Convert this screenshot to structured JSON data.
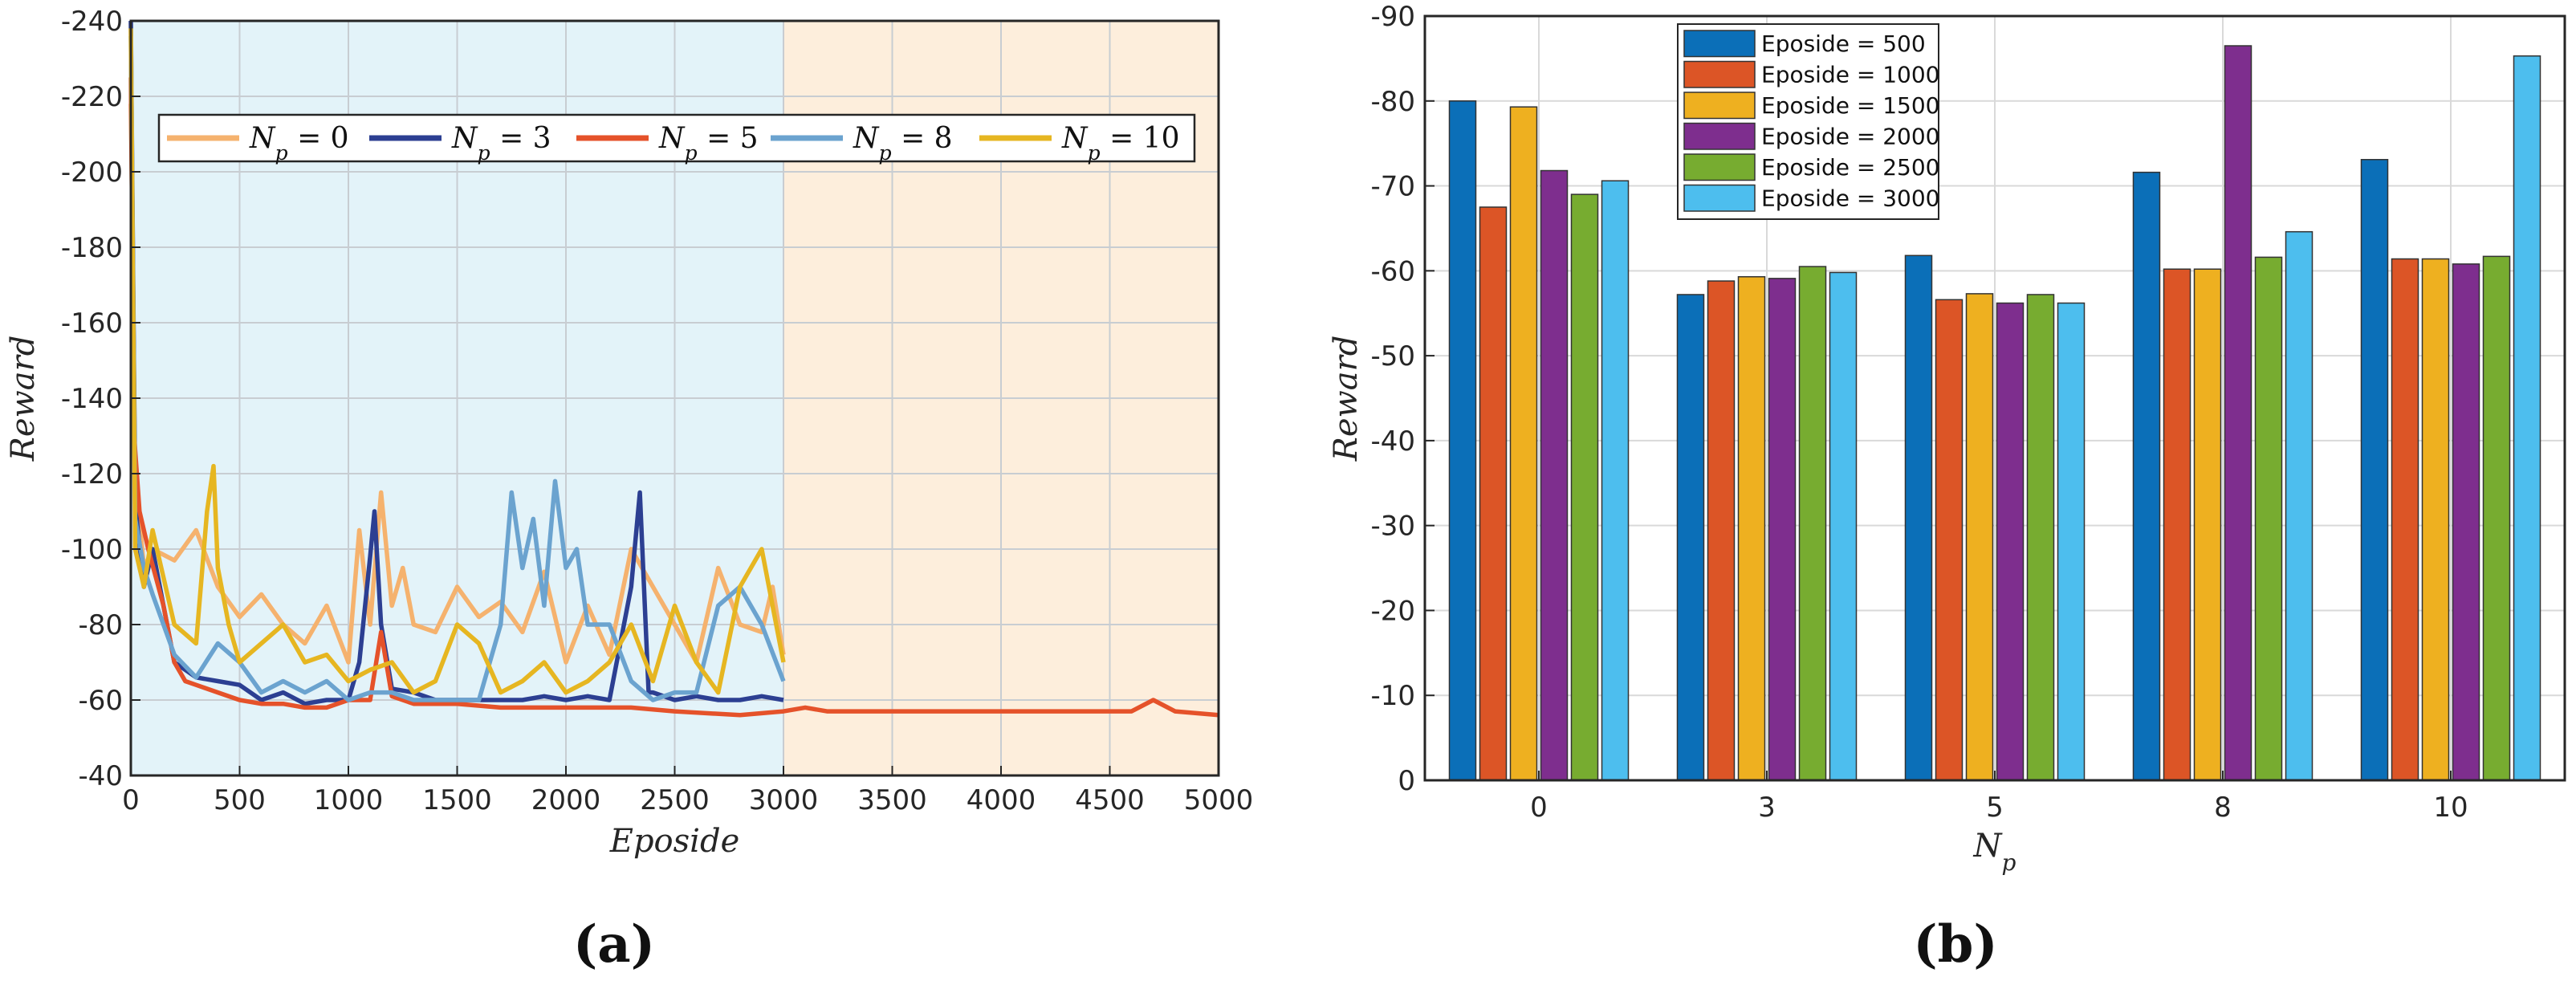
{
  "chart_data": [
    {
      "type": "line",
      "caption": "(a)",
      "xlabel": "Eposide",
      "ylabel": "Reward",
      "xlim": [
        0,
        5000
      ],
      "ylim": [
        -40,
        -240
      ],
      "y_axis_reversed": true,
      "grid": true,
      "legend_position": "top",
      "legend_layout": "horizontal",
      "x_ticks": [
        "0",
        "500",
        "1000",
        "1500",
        "2000",
        "2500",
        "3000",
        "3500",
        "4000",
        "4500",
        "5000"
      ],
      "y_ticks": [
        "-40",
        "-60",
        "-80",
        "-100",
        "-120",
        "-140",
        "-160",
        "-180",
        "-200",
        "-220",
        "-240"
      ],
      "shaded_regions": [
        {
          "x": [
            0,
            3000
          ],
          "color": "#e3f3f9"
        },
        {
          "x": [
            3000,
            5000
          ],
          "color": "#fdeedc"
        }
      ],
      "series": [
        {
          "name": "N_p = 0",
          "label_base": "N",
          "label_sub": "p",
          "label_val": " = 0",
          "color": "#f5b26e",
          "x": [
            0,
            20,
            60,
            100,
            200,
            300,
            400,
            500,
            600,
            700,
            800,
            900,
            1000,
            1050,
            1100,
            1150,
            1200,
            1250,
            1300,
            1400,
            1500,
            1600,
            1700,
            1800,
            1900,
            2000,
            2100,
            2200,
            2300,
            2400,
            2500,
            2600,
            2700,
            2800,
            2900,
            2950,
            3000
          ],
          "y": [
            -218,
            -120,
            -95,
            -100,
            -97,
            -105,
            -90,
            -82,
            -88,
            -80,
            -75,
            -85,
            -70,
            -105,
            -80,
            -115,
            -85,
            -95,
            -80,
            -78,
            -90,
            -82,
            -86,
            -78,
            -94,
            -70,
            -85,
            -72,
            -100,
            -90,
            -80,
            -70,
            -95,
            -80,
            -78,
            -90,
            -72
          ]
        },
        {
          "name": "N_p = 3",
          "label_base": "N",
          "label_sub": "p",
          "label_val": " = 3",
          "color": "#2c3f92",
          "x": [
            0,
            20,
            60,
            100,
            200,
            300,
            400,
            500,
            600,
            700,
            800,
            900,
            1000,
            1050,
            1100,
            1120,
            1150,
            1200,
            1300,
            1400,
            1500,
            1600,
            1700,
            1800,
            1900,
            2000,
            2100,
            2200,
            2300,
            2340,
            2380,
            2400,
            2500,
            2600,
            2700,
            2800,
            2900,
            3000
          ],
          "y": [
            -240,
            -112,
            -90,
            -100,
            -70,
            -66,
            -65,
            -64,
            -60,
            -62,
            -59,
            -60,
            -60,
            -70,
            -98,
            -110,
            -80,
            -63,
            -62,
            -60,
            -60,
            -60,
            -60,
            -60,
            -61,
            -60,
            -61,
            -60,
            -90,
            -115,
            -62,
            -62,
            -60,
            -61,
            -60,
            -60,
            -61,
            -60
          ]
        },
        {
          "name": "N_p = 5",
          "label_base": "N",
          "label_sub": "p",
          "label_val": " = 5",
          "color": "#e5522a",
          "x": [
            0,
            15,
            40,
            80,
            150,
            200,
            250,
            300,
            400,
            500,
            600,
            700,
            800,
            900,
            1000,
            1100,
            1150,
            1200,
            1300,
            1500,
            1700,
            2000,
            2300,
            2500,
            2800,
            3000,
            3100,
            3200,
            3400,
            3600,
            3800,
            4000,
            4200,
            4400,
            4600,
            4700,
            4800,
            5000
          ],
          "y": [
            -225,
            -130,
            -110,
            -100,
            -85,
            -70,
            -65,
            -64,
            -62,
            -60,
            -59,
            -59,
            -58,
            -58,
            -60,
            -60,
            -78,
            -61,
            -59,
            -59,
            -58,
            -58,
            -58,
            -57,
            -56,
            -57,
            -58,
            -57,
            -57,
            -57,
            -57,
            -57,
            -57,
            -57,
            -57,
            -60,
            -57,
            -56
          ]
        },
        {
          "name": "N_p = 8",
          "label_base": "N",
          "label_sub": "p",
          "label_val": " = 8",
          "color": "#6ba3cf",
          "x": [
            0,
            20,
            60,
            100,
            200,
            300,
            400,
            500,
            600,
            700,
            800,
            900,
            1000,
            1100,
            1200,
            1300,
            1400,
            1500,
            1600,
            1700,
            1750,
            1800,
            1850,
            1900,
            1950,
            2000,
            2050,
            2100,
            2200,
            2300,
            2400,
            2500,
            2600,
            2700,
            2800,
            2900,
            3000
          ],
          "y": [
            -236,
            -108,
            -95,
            -88,
            -72,
            -66,
            -75,
            -70,
            -62,
            -65,
            -62,
            -65,
            -60,
            -62,
            -62,
            -60,
            -60,
            -60,
            -60,
            -80,
            -115,
            -95,
            -108,
            -85,
            -118,
            -95,
            -100,
            -80,
            -80,
            -65,
            -60,
            -62,
            -62,
            -85,
            -90,
            -80,
            -65
          ]
        },
        {
          "name": "N_p = 10",
          "label_base": "N",
          "label_sub": "p",
          "label_val": " = 10",
          "color": "#e6b621",
          "x": [
            0,
            20,
            60,
            100,
            200,
            300,
            350,
            380,
            400,
            450,
            500,
            600,
            700,
            800,
            900,
            1000,
            1100,
            1200,
            1300,
            1400,
            1500,
            1600,
            1700,
            1800,
            1900,
            2000,
            2100,
            2200,
            2300,
            2400,
            2500,
            2600,
            2700,
            2800,
            2900,
            2950,
            3000
          ],
          "y": [
            -238,
            -100,
            -90,
            -105,
            -80,
            -75,
            -110,
            -122,
            -95,
            -80,
            -70,
            -75,
            -80,
            -70,
            -72,
            -65,
            -68,
            -70,
            -62,
            -65,
            -80,
            -75,
            -62,
            -65,
            -70,
            -62,
            -65,
            -70,
            -80,
            -65,
            -85,
            -70,
            -62,
            -90,
            -100,
            -85,
            -70
          ]
        }
      ]
    },
    {
      "type": "bar",
      "caption": "(b)",
      "xlabel": "N_p",
      "xlabel_base": "N",
      "xlabel_sub": "p",
      "ylabel": "Reward",
      "ylim": [
        0,
        -90
      ],
      "y_axis_reversed": true,
      "grid": true,
      "legend_position": "top-left",
      "categories": [
        "0",
        "3",
        "5",
        "8",
        "10"
      ],
      "y_ticks": [
        "0",
        "-10",
        "-20",
        "-30",
        "-40",
        "-50",
        "-60",
        "-70",
        "-80",
        "-90"
      ],
      "series": [
        {
          "name": "Eposide = 500",
          "color": "#0b6fb8",
          "values": [
            -80,
            -57.2,
            -61.8,
            -71.6,
            -73.1
          ]
        },
        {
          "name": "Eposide = 1000",
          "color": "#dc5526",
          "values": [
            -67.5,
            -58.8,
            -56.6,
            -60.2,
            -61.4
          ]
        },
        {
          "name": "Eposide = 1500",
          "color": "#eeb020",
          "values": [
            -79.3,
            -59.3,
            -57.3,
            -60.2,
            -61.4
          ]
        },
        {
          "name": "Eposide = 2000",
          "color": "#7e2e8e",
          "values": [
            -71.8,
            -59.1,
            -56.2,
            -86.5,
            -60.8
          ]
        },
        {
          "name": "Eposide = 2500",
          "color": "#77ac30",
          "values": [
            -69.0,
            -60.5,
            -57.2,
            -61.6,
            -61.7
          ]
        },
        {
          "name": "Eposide = 3000",
          "color": "#4dbeee",
          "values": [
            -70.6,
            -59.8,
            -56.2,
            -64.6,
            -85.3
          ]
        }
      ]
    }
  ]
}
